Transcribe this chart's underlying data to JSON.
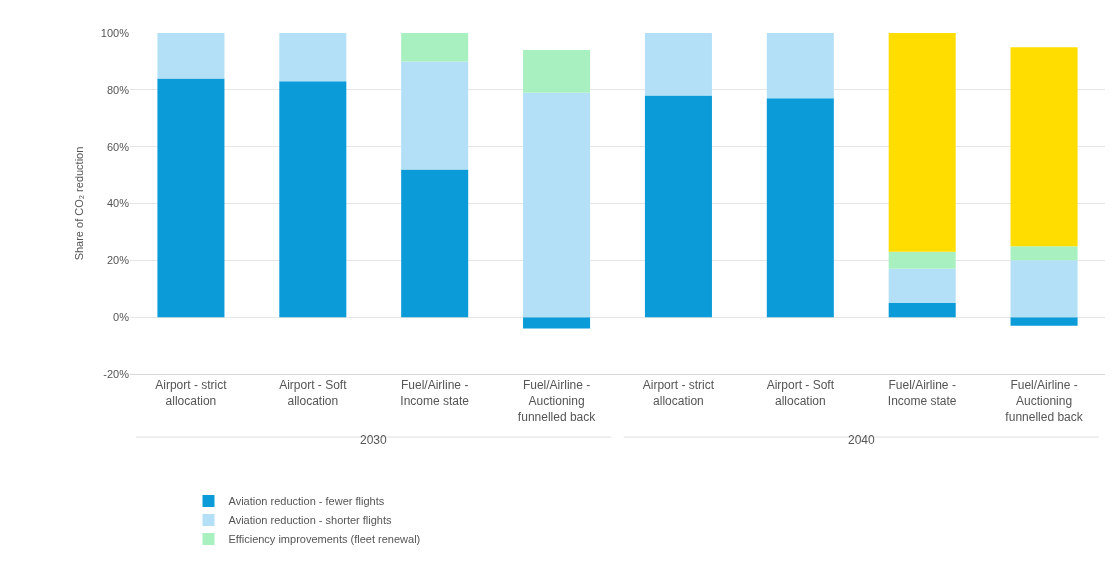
{
  "chart_data": {
    "type": "bar",
    "stacked": true,
    "ylabel": "Share of CO₂ reduction",
    "categories": [
      "Airport - strict allocation",
      "Airport - Soft allocation",
      "Fuel/Airline - Income state",
      "Fuel/Airline - Auctioning funnelled back",
      "Airport - strict allocation",
      "Airport - Soft allocation",
      "Fuel/Airline - Income state",
      "Fuel/Airline - Auctioning funnelled back"
    ],
    "annotations": [
      "2030",
      "2040"
    ],
    "series": [
      {
        "name": "Aviation reduction - fewer flights",
        "color": "#0a9bd8",
        "values": [
          84,
          83,
          52,
          -4,
          78,
          77,
          5,
          -3
        ]
      },
      {
        "name": "Aviation reduction - shorter flights",
        "color": "#b3e0f7",
        "values": [
          16,
          17,
          38,
          79,
          22,
          23,
          12,
          20
        ]
      },
      {
        "name": "Efficiency improvements (fleet renewal)",
        "color": "#a8f0c0",
        "values": [
          0,
          0,
          10,
          15,
          0,
          0,
          6,
          5
        ]
      },
      {
        "color": "#ffdd00",
        "values": [
          0,
          0,
          0,
          0,
          0,
          0,
          77,
          70
        ]
      }
    ],
    "ylim": [
      -20,
      100
    ],
    "yticks": [
      {
        "value": -20,
        "label": "-20%"
      },
      {
        "value": 0,
        "label": "0%"
      },
      {
        "value": 20,
        "label": "20%"
      },
      {
        "value": 40,
        "label": "40%"
      },
      {
        "value": 60,
        "label": "60%"
      },
      {
        "value": 80,
        "label": "80%"
      },
      {
        "value": 100,
        "label": "100%"
      }
    ],
    "grid": "y",
    "legend": "bottom left"
  }
}
